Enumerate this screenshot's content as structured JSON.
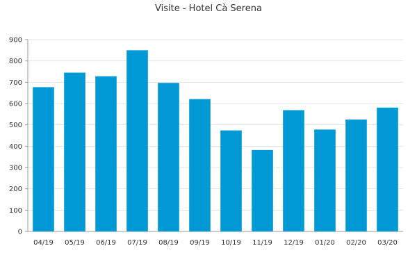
{
  "chart_data": {
    "type": "bar",
    "title": "Visite - Hotel Cà Serena",
    "xlabel": "",
    "ylabel": "",
    "categories": [
      "04/19",
      "05/19",
      "06/19",
      "07/19",
      "08/19",
      "09/19",
      "10/19",
      "11/19",
      "12/19",
      "01/20",
      "02/20",
      "03/20"
    ],
    "values": [
      677,
      745,
      728,
      850,
      697,
      621,
      474,
      382,
      569,
      478,
      525,
      581
    ],
    "ylim": [
      0,
      900
    ],
    "yticks": [
      0,
      100,
      200,
      300,
      400,
      500,
      600,
      700,
      800,
      900
    ],
    "grid": true,
    "legend": "none",
    "colors": {
      "bar": "#0099d5",
      "grid": "#e3e3e3",
      "axis": "#999999",
      "text": "#333333"
    }
  }
}
